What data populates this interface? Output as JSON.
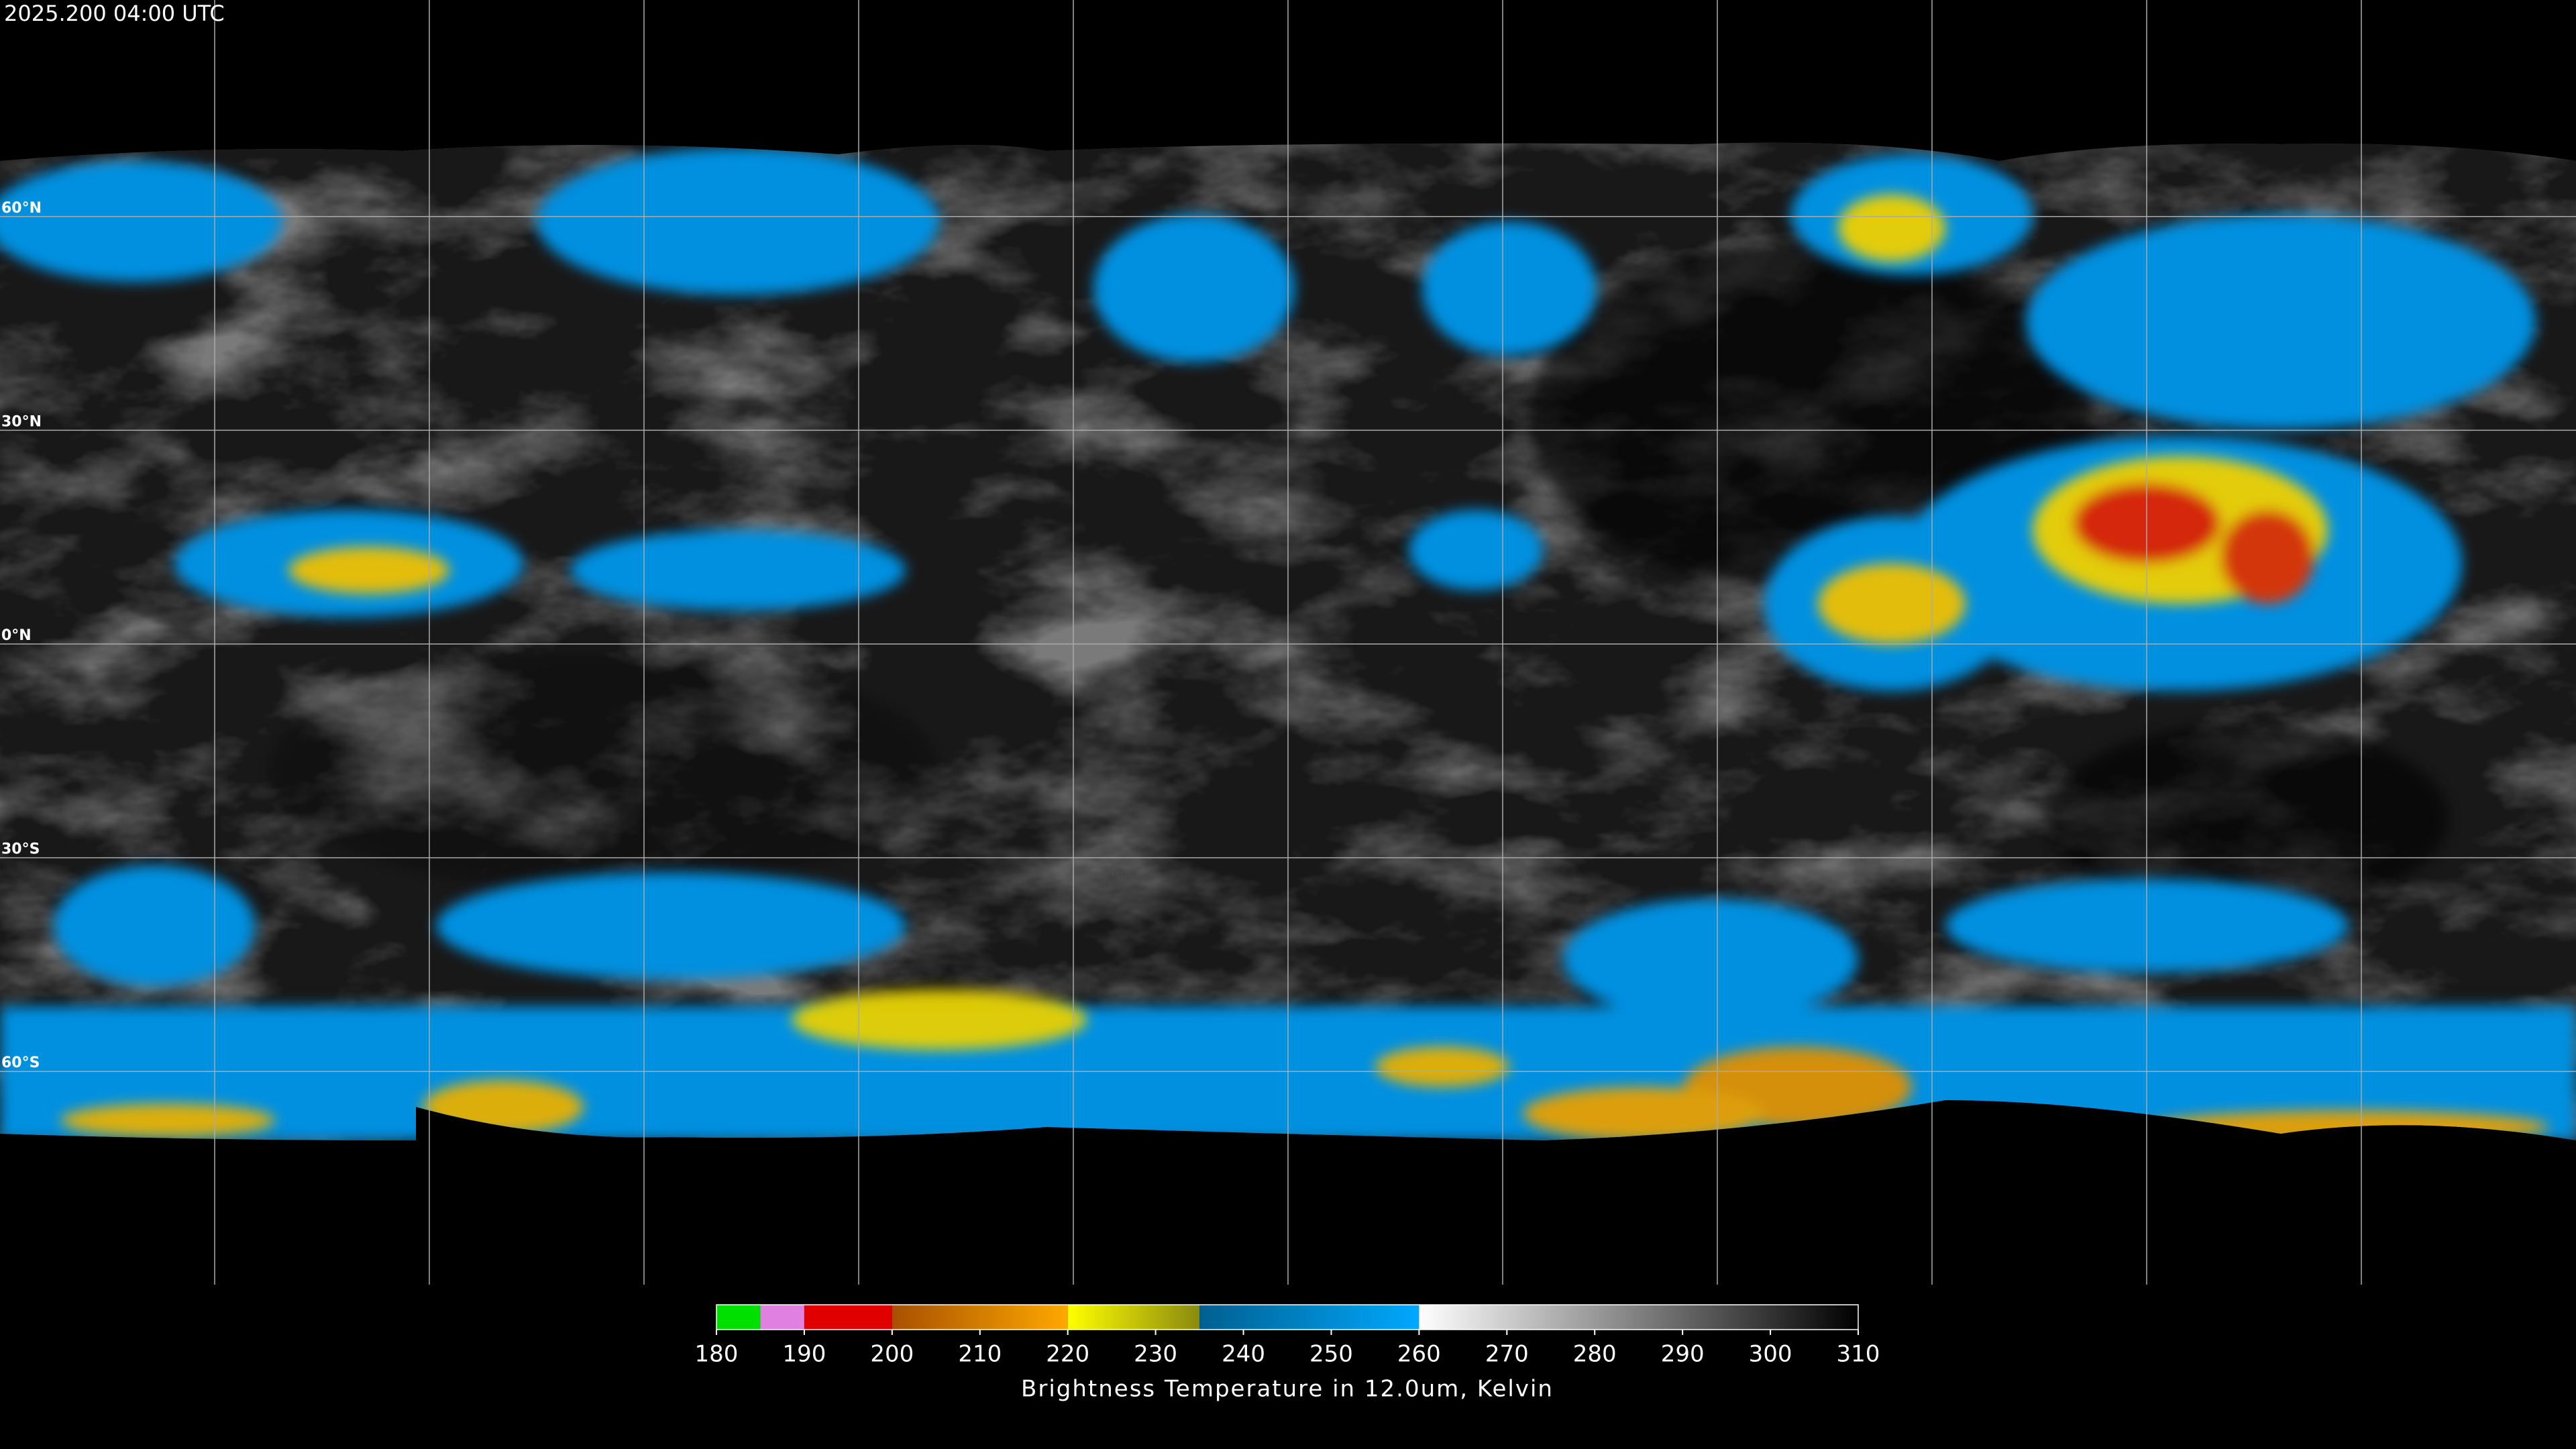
{
  "timestamp": "2025.200 04:00 UTC",
  "latitudes": [
    {
      "value": 60,
      "label": "60°N"
    },
    {
      "value": 30,
      "label": "30°N"
    },
    {
      "value": 0,
      "label": "0°N"
    },
    {
      "value": -30,
      "label": "30°S"
    },
    {
      "value": -60,
      "label": "60°S"
    }
  ],
  "colorbar": {
    "lim": [
      180,
      310
    ],
    "ticks": [
      180,
      190,
      200,
      210,
      220,
      230,
      240,
      250,
      260,
      270,
      280,
      290,
      300,
      310
    ],
    "segments": [
      {
        "from": 180,
        "to": 185,
        "colors": [
          "#00e000",
          "#00e000"
        ]
      },
      {
        "from": 185,
        "to": 190,
        "colors": [
          "#e080e0",
          "#e080e0"
        ]
      },
      {
        "from": 190,
        "to": 200,
        "colors": [
          "#e00000",
          "#e00000"
        ]
      },
      {
        "from": 200,
        "to": 220,
        "colors": [
          "#a85000",
          "#ffa800"
        ]
      },
      {
        "from": 220,
        "to": 235,
        "colors": [
          "#ffff00",
          "#8a8a10"
        ]
      },
      {
        "from": 235,
        "to": 260,
        "colors": [
          "#006090",
          "#00a8ff"
        ]
      },
      {
        "from": 260,
        "to": 310,
        "colors": [
          "#ffffff",
          "#000000"
        ]
      }
    ],
    "label": "Brightness Temperature in 12.0um, Kelvin"
  }
}
